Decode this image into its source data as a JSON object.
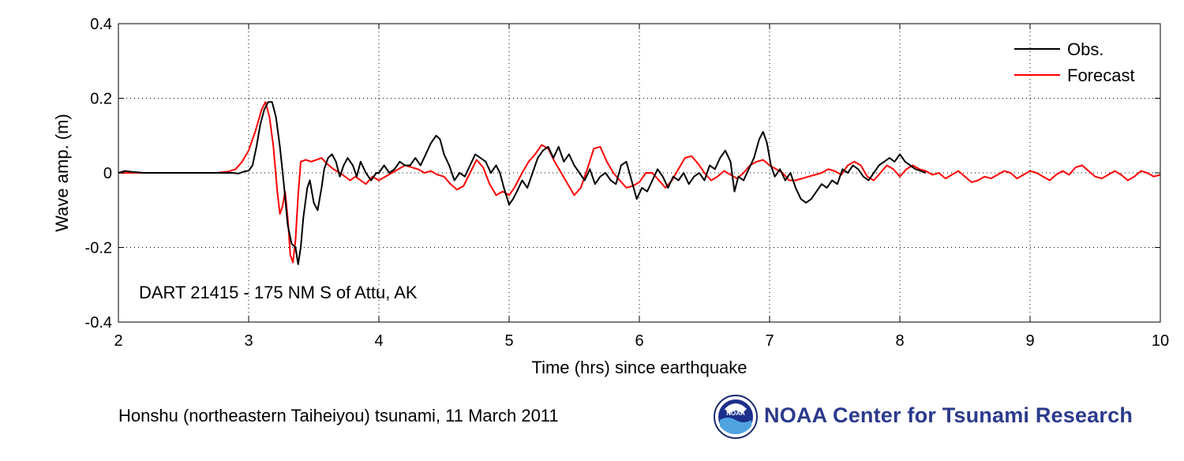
{
  "chart_data": {
    "type": "line",
    "title": "",
    "xlabel": "Time (hrs) since earthquake",
    "ylabel": "Wave amp. (m)",
    "xlim": [
      2,
      10
    ],
    "ylim": [
      -0.4,
      0.4
    ],
    "xticks": [
      "2",
      "3",
      "4",
      "5",
      "6",
      "7",
      "8",
      "9",
      "10"
    ],
    "yticks": [
      "0.4",
      "0.2",
      "0",
      "-0.2",
      "-0.4"
    ],
    "grid": "dotted",
    "legend_position": "top-right",
    "annotation": "DART 21415 - 175 NM S of Attu, AK",
    "series": [
      {
        "name": "Obs.",
        "color": "#000000",
        "points": [
          [
            2.0,
            0.0
          ],
          [
            2.05,
            0.005
          ],
          [
            2.1,
            0.003
          ],
          [
            2.2,
            0.0
          ],
          [
            2.4,
            0.0
          ],
          [
            2.6,
            0.0
          ],
          [
            2.8,
            0.0
          ],
          [
            2.88,
            0.0
          ],
          [
            2.92,
            -0.002
          ],
          [
            2.97,
            0.004
          ],
          [
            3.0,
            0.006
          ],
          [
            3.03,
            0.02
          ],
          [
            3.06,
            0.07
          ],
          [
            3.09,
            0.13
          ],
          [
            3.12,
            0.17
          ],
          [
            3.15,
            0.19
          ],
          [
            3.18,
            0.19
          ],
          [
            3.21,
            0.15
          ],
          [
            3.24,
            0.07
          ],
          [
            3.27,
            -0.03
          ],
          [
            3.3,
            -0.14
          ],
          [
            3.33,
            -0.19
          ],
          [
            3.36,
            -0.2
          ],
          [
            3.38,
            -0.245
          ],
          [
            3.4,
            -0.2
          ],
          [
            3.42,
            -0.12
          ],
          [
            3.45,
            -0.04
          ],
          [
            3.47,
            -0.02
          ],
          [
            3.5,
            -0.08
          ],
          [
            3.53,
            -0.1
          ],
          [
            3.56,
            -0.04
          ],
          [
            3.58,
            0.01
          ],
          [
            3.61,
            0.04
          ],
          [
            3.64,
            0.05
          ],
          [
            3.67,
            0.03
          ],
          [
            3.7,
            -0.01
          ],
          [
            3.73,
            0.02
          ],
          [
            3.76,
            0.04
          ],
          [
            3.8,
            0.02
          ],
          [
            3.83,
            -0.01
          ],
          [
            3.86,
            0.03
          ],
          [
            3.9,
            0.0
          ],
          [
            3.94,
            -0.02
          ],
          [
            3.98,
            0.0
          ],
          [
            4.0,
            0.0
          ],
          [
            4.04,
            0.02
          ],
          [
            4.08,
            0.0
          ],
          [
            4.12,
            0.01
          ],
          [
            4.16,
            0.03
          ],
          [
            4.2,
            0.02
          ],
          [
            4.24,
            0.02
          ],
          [
            4.28,
            0.04
          ],
          [
            4.32,
            0.02
          ],
          [
            4.36,
            0.05
          ],
          [
            4.4,
            0.08
          ],
          [
            4.44,
            0.1
          ],
          [
            4.47,
            0.09
          ],
          [
            4.5,
            0.05
          ],
          [
            4.54,
            0.02
          ],
          [
            4.58,
            -0.02
          ],
          [
            4.62,
            0.0
          ],
          [
            4.66,
            -0.01
          ],
          [
            4.7,
            0.02
          ],
          [
            4.74,
            0.05
          ],
          [
            4.78,
            0.04
          ],
          [
            4.82,
            0.03
          ],
          [
            4.86,
            0.0
          ],
          [
            4.9,
            0.02
          ],
          [
            4.93,
            0.0
          ],
          [
            4.96,
            -0.04
          ],
          [
            5.0,
            -0.085
          ],
          [
            5.03,
            -0.07
          ],
          [
            5.06,
            -0.05
          ],
          [
            5.1,
            -0.02
          ],
          [
            5.14,
            -0.04
          ],
          [
            5.18,
            0.0
          ],
          [
            5.22,
            0.04
          ],
          [
            5.26,
            0.06
          ],
          [
            5.3,
            0.07
          ],
          [
            5.34,
            0.04
          ],
          [
            5.38,
            0.07
          ],
          [
            5.42,
            0.03
          ],
          [
            5.46,
            0.05
          ],
          [
            5.5,
            0.02
          ],
          [
            5.54,
            0.0
          ],
          [
            5.58,
            -0.02
          ],
          [
            5.62,
            0.01
          ],
          [
            5.66,
            -0.03
          ],
          [
            5.7,
            -0.01
          ],
          [
            5.74,
            0.0
          ],
          [
            5.78,
            -0.02
          ],
          [
            5.82,
            -0.03
          ],
          [
            5.86,
            0.02
          ],
          [
            5.9,
            0.03
          ],
          [
            5.94,
            -0.02
          ],
          [
            5.98,
            -0.07
          ],
          [
            6.02,
            -0.04
          ],
          [
            6.06,
            -0.05
          ],
          [
            6.1,
            -0.02
          ],
          [
            6.14,
            0.01
          ],
          [
            6.18,
            -0.01
          ],
          [
            6.22,
            -0.04
          ],
          [
            6.26,
            -0.01
          ],
          [
            6.3,
            -0.02
          ],
          [
            6.34,
            0.0
          ],
          [
            6.38,
            -0.03
          ],
          [
            6.42,
            -0.01
          ],
          [
            6.46,
            0.0
          ],
          [
            6.5,
            -0.02
          ],
          [
            6.54,
            0.02
          ],
          [
            6.58,
            0.01
          ],
          [
            6.62,
            0.04
          ],
          [
            6.66,
            0.06
          ],
          [
            6.7,
            0.03
          ],
          [
            6.73,
            -0.05
          ],
          [
            6.76,
            -0.01
          ],
          [
            6.8,
            -0.02
          ],
          [
            6.84,
            0.01
          ],
          [
            6.88,
            0.04
          ],
          [
            6.92,
            0.09
          ],
          [
            6.95,
            0.11
          ],
          [
            6.98,
            0.08
          ],
          [
            7.01,
            0.02
          ],
          [
            7.04,
            -0.01
          ],
          [
            7.08,
            0.01
          ],
          [
            7.12,
            -0.02
          ],
          [
            7.16,
            0.0
          ],
          [
            7.2,
            -0.04
          ],
          [
            7.24,
            -0.07
          ],
          [
            7.28,
            -0.08
          ],
          [
            7.32,
            -0.07
          ],
          [
            7.36,
            -0.05
          ],
          [
            7.4,
            -0.03
          ],
          [
            7.44,
            -0.04
          ],
          [
            7.48,
            -0.02
          ],
          [
            7.52,
            -0.03
          ],
          [
            7.56,
            0.01
          ],
          [
            7.6,
            0.0
          ],
          [
            7.64,
            0.02
          ],
          [
            7.68,
            0.01
          ],
          [
            7.72,
            -0.01
          ],
          [
            7.76,
            -0.02
          ],
          [
            7.8,
            0.0
          ],
          [
            7.84,
            0.02
          ],
          [
            7.88,
            0.03
          ],
          [
            7.92,
            0.04
          ],
          [
            7.96,
            0.03
          ],
          [
            8.0,
            0.05
          ],
          [
            8.04,
            0.03
          ],
          [
            8.08,
            0.02
          ],
          [
            8.12,
            0.01
          ],
          [
            8.16,
            0.005
          ],
          [
            8.2,
            0.0
          ]
        ]
      },
      {
        "name": "Forecast",
        "color": "#ff0000",
        "points": [
          [
            2.0,
            0.0
          ],
          [
            2.4,
            0.0
          ],
          [
            2.75,
            0.0
          ],
          [
            2.85,
            0.004
          ],
          [
            2.9,
            0.01
          ],
          [
            2.95,
            0.03
          ],
          [
            3.0,
            0.06
          ],
          [
            3.05,
            0.11
          ],
          [
            3.1,
            0.17
          ],
          [
            3.13,
            0.19
          ],
          [
            3.16,
            0.15
          ],
          [
            3.19,
            0.07
          ],
          [
            3.22,
            -0.05
          ],
          [
            3.24,
            -0.11
          ],
          [
            3.26,
            -0.09
          ],
          [
            3.28,
            -0.05
          ],
          [
            3.3,
            -0.12
          ],
          [
            3.32,
            -0.22
          ],
          [
            3.34,
            -0.24
          ],
          [
            3.36,
            -0.18
          ],
          [
            3.38,
            -0.06
          ],
          [
            3.4,
            0.03
          ],
          [
            3.44,
            0.035
          ],
          [
            3.48,
            0.03
          ],
          [
            3.52,
            0.035
          ],
          [
            3.56,
            0.04
          ],
          [
            3.6,
            0.025
          ],
          [
            3.65,
            0.01
          ],
          [
            3.7,
            0.0
          ],
          [
            3.74,
            -0.01
          ],
          [
            3.78,
            -0.02
          ],
          [
            3.82,
            -0.01
          ],
          [
            3.86,
            -0.02
          ],
          [
            3.9,
            -0.03
          ],
          [
            3.95,
            -0.01
          ],
          [
            4.0,
            -0.02
          ],
          [
            4.05,
            -0.01
          ],
          [
            4.1,
            0.0
          ],
          [
            4.15,
            0.01
          ],
          [
            4.2,
            0.02
          ],
          [
            4.25,
            0.015
          ],
          [
            4.3,
            0.01
          ],
          [
            4.35,
            0.0
          ],
          [
            4.4,
            0.005
          ],
          [
            4.45,
            -0.005
          ],
          [
            4.5,
            -0.01
          ],
          [
            4.55,
            -0.03
          ],
          [
            4.6,
            -0.045
          ],
          [
            4.65,
            -0.035
          ],
          [
            4.7,
            0.0
          ],
          [
            4.75,
            0.035
          ],
          [
            4.8,
            0.015
          ],
          [
            4.85,
            -0.03
          ],
          [
            4.9,
            -0.06
          ],
          [
            4.95,
            -0.05
          ],
          [
            5.0,
            -0.06
          ],
          [
            5.04,
            -0.04
          ],
          [
            5.1,
            0.0
          ],
          [
            5.15,
            0.03
          ],
          [
            5.2,
            0.05
          ],
          [
            5.25,
            0.075
          ],
          [
            5.3,
            0.065
          ],
          [
            5.35,
            0.03
          ],
          [
            5.4,
            0.0
          ],
          [
            5.45,
            -0.03
          ],
          [
            5.5,
            -0.06
          ],
          [
            5.55,
            -0.04
          ],
          [
            5.6,
            0.01
          ],
          [
            5.65,
            0.065
          ],
          [
            5.7,
            0.07
          ],
          [
            5.75,
            0.03
          ],
          [
            5.8,
            0.0
          ],
          [
            5.85,
            -0.02
          ],
          [
            5.9,
            -0.04
          ],
          [
            5.95,
            -0.035
          ],
          [
            6.0,
            -0.025
          ],
          [
            6.05,
            0.0
          ],
          [
            6.1,
            0.0
          ],
          [
            6.15,
            -0.02
          ],
          [
            6.2,
            -0.04
          ],
          [
            6.25,
            -0.02
          ],
          [
            6.3,
            0.01
          ],
          [
            6.35,
            0.04
          ],
          [
            6.4,
            0.045
          ],
          [
            6.45,
            0.025
          ],
          [
            6.5,
            0.0
          ],
          [
            6.55,
            -0.02
          ],
          [
            6.6,
            -0.01
          ],
          [
            6.65,
            0.005
          ],
          [
            6.7,
            -0.005
          ],
          [
            6.75,
            -0.015
          ],
          [
            6.8,
            0.0
          ],
          [
            6.85,
            0.02
          ],
          [
            6.9,
            0.03
          ],
          [
            6.95,
            0.035
          ],
          [
            7.0,
            0.02
          ],
          [
            7.05,
            0.01
          ],
          [
            7.1,
            0.0
          ],
          [
            7.15,
            -0.02
          ],
          [
            7.2,
            -0.02
          ],
          [
            7.25,
            -0.015
          ],
          [
            7.3,
            -0.01
          ],
          [
            7.35,
            -0.005
          ],
          [
            7.4,
            0.0
          ],
          [
            7.45,
            0.01
          ],
          [
            7.5,
            0.005
          ],
          [
            7.55,
            -0.005
          ],
          [
            7.6,
            0.02
          ],
          [
            7.65,
            0.03
          ],
          [
            7.7,
            0.02
          ],
          [
            7.75,
            -0.01
          ],
          [
            7.8,
            -0.02
          ],
          [
            7.85,
            0.0
          ],
          [
            7.9,
            0.02
          ],
          [
            7.95,
            0.01
          ],
          [
            8.0,
            -0.01
          ],
          [
            8.05,
            0.01
          ],
          [
            8.1,
            0.02
          ],
          [
            8.15,
            0.01
          ],
          [
            8.2,
            0.005
          ],
          [
            8.25,
            -0.005
          ],
          [
            8.3,
            0.0
          ],
          [
            8.35,
            -0.015
          ],
          [
            8.4,
            -0.005
          ],
          [
            8.45,
            0.005
          ],
          [
            8.5,
            -0.01
          ],
          [
            8.55,
            -0.025
          ],
          [
            8.6,
            -0.02
          ],
          [
            8.65,
            -0.01
          ],
          [
            8.7,
            -0.015
          ],
          [
            8.75,
            -0.005
          ],
          [
            8.8,
            0.005
          ],
          [
            8.85,
            0.0
          ],
          [
            8.9,
            -0.015
          ],
          [
            8.95,
            -0.005
          ],
          [
            9.0,
            0.005
          ],
          [
            9.05,
            0.0
          ],
          [
            9.1,
            -0.01
          ],
          [
            9.15,
            -0.02
          ],
          [
            9.2,
            -0.005
          ],
          [
            9.25,
            0.005
          ],
          [
            9.3,
            -0.005
          ],
          [
            9.35,
            0.015
          ],
          [
            9.4,
            0.02
          ],
          [
            9.45,
            0.005
          ],
          [
            9.5,
            -0.01
          ],
          [
            9.55,
            -0.015
          ],
          [
            9.6,
            -0.005
          ],
          [
            9.65,
            0.005
          ],
          [
            9.7,
            -0.005
          ],
          [
            9.75,
            -0.02
          ],
          [
            9.8,
            -0.01
          ],
          [
            9.85,
            0.005
          ],
          [
            9.9,
            0.0
          ],
          [
            9.95,
            -0.01
          ],
          [
            10.0,
            -0.005
          ]
        ]
      }
    ]
  },
  "caption": "Honshu (northeastern Taiheiyou) tsunami, 11 March 2011",
  "footer": {
    "org_title": "NOAA Center for Tsunami Research",
    "logo_text": "NOAA",
    "logo_icon": "noaa-logo-icon",
    "brand_color": "#2b3a8c"
  }
}
